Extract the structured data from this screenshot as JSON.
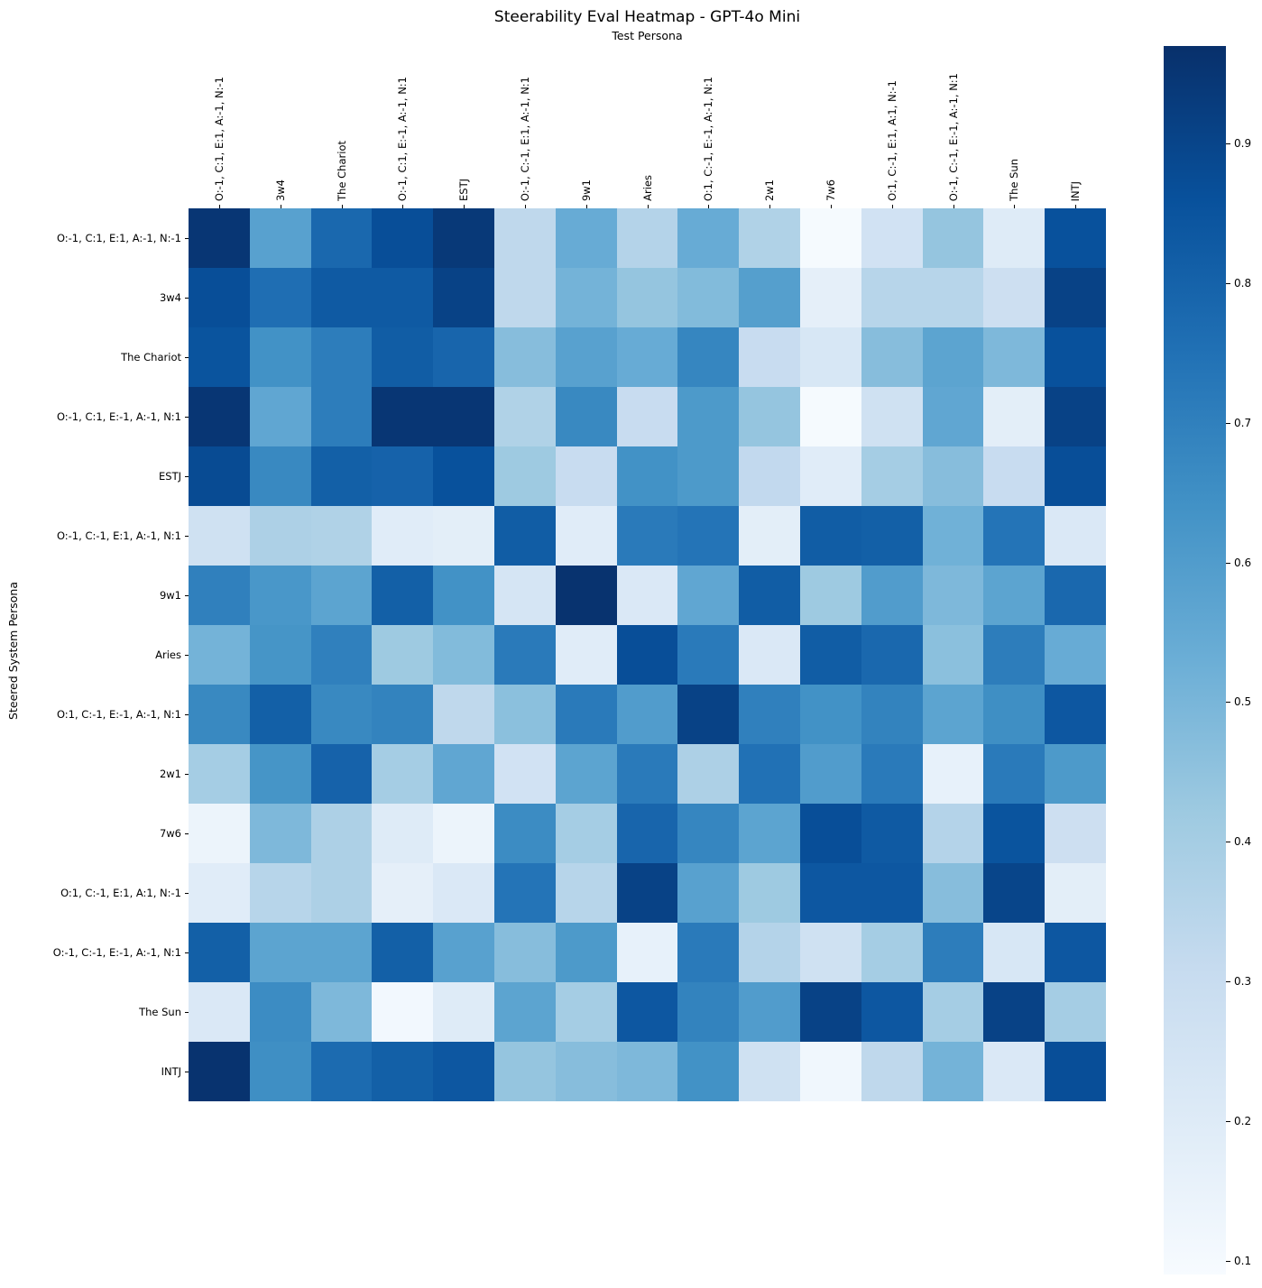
{
  "figure": {
    "title": "Steerability Eval Heatmap - GPT-4o Mini",
    "x_axis_label": "Test Persona",
    "y_axis_label": "Steered System Persona"
  },
  "chart_data": {
    "type": "heatmap",
    "colormap": "Blues",
    "legend_position": "right-colorbar",
    "grid": false,
    "x_labels": [
      "O:-1, C:1, E:1, A:-1, N:-1",
      "3w4",
      "The Chariot",
      "O:-1, C:1, E:-1, A:-1, N:1",
      "ESTJ",
      "O:-1, C:-1, E:1, A:-1, N:1",
      "9w1",
      "Aries",
      "O:1, C:-1, E:-1, A:-1, N:1",
      "2w1",
      "7w6",
      "O:1, C:-1, E:1, A:1, N:-1",
      "O:-1, C:-1, E:-1, A:-1, N:1",
      "The Sun",
      "INTJ"
    ],
    "y_labels": [
      "O:-1, C:1, E:1, A:-1, N:-1",
      "3w4",
      "The Chariot",
      "O:-1, C:1, E:-1, A:-1, N:1",
      "ESTJ",
      "O:-1, C:-1, E:1, A:-1, N:1",
      "9w1",
      "Aries",
      "O:1, C:-1, E:-1, A:-1, N:1",
      "2w1",
      "7w6",
      "O:1, C:-1, E:1, A:1, N:-1",
      "O:-1, C:-1, E:-1, A:-1, N:1",
      "The Sun",
      "INTJ"
    ],
    "values": [
      [
        0.95,
        0.58,
        0.78,
        0.87,
        0.94,
        0.33,
        0.54,
        0.36,
        0.54,
        0.37,
        0.1,
        0.26,
        0.44,
        0.2,
        0.86
      ],
      [
        0.87,
        0.76,
        0.83,
        0.83,
        0.91,
        0.33,
        0.51,
        0.44,
        0.48,
        0.59,
        0.17,
        0.35,
        0.35,
        0.28,
        0.91
      ],
      [
        0.85,
        0.64,
        0.71,
        0.82,
        0.79,
        0.47,
        0.58,
        0.54,
        0.68,
        0.3,
        0.23,
        0.47,
        0.57,
        0.49,
        0.86
      ],
      [
        0.95,
        0.56,
        0.71,
        0.95,
        0.95,
        0.37,
        0.67,
        0.3,
        0.61,
        0.44,
        0.1,
        0.27,
        0.56,
        0.18,
        0.91
      ],
      [
        0.88,
        0.67,
        0.81,
        0.8,
        0.86,
        0.42,
        0.3,
        0.64,
        0.61,
        0.32,
        0.19,
        0.4,
        0.47,
        0.3,
        0.87
      ],
      [
        0.27,
        0.38,
        0.37,
        0.19,
        0.18,
        0.82,
        0.19,
        0.72,
        0.74,
        0.18,
        0.82,
        0.81,
        0.52,
        0.74,
        0.22
      ],
      [
        0.7,
        0.62,
        0.57,
        0.81,
        0.64,
        0.24,
        0.96,
        0.22,
        0.56,
        0.82,
        0.42,
        0.6,
        0.49,
        0.57,
        0.78
      ],
      [
        0.51,
        0.63,
        0.7,
        0.42,
        0.48,
        0.72,
        0.19,
        0.87,
        0.72,
        0.22,
        0.82,
        0.78,
        0.46,
        0.71,
        0.54
      ],
      [
        0.67,
        0.81,
        0.67,
        0.69,
        0.33,
        0.46,
        0.72,
        0.6,
        0.91,
        0.7,
        0.64,
        0.69,
        0.57,
        0.65,
        0.84
      ],
      [
        0.4,
        0.63,
        0.8,
        0.4,
        0.56,
        0.26,
        0.57,
        0.72,
        0.38,
        0.75,
        0.6,
        0.72,
        0.16,
        0.72,
        0.61
      ],
      [
        0.14,
        0.49,
        0.38,
        0.2,
        0.14,
        0.66,
        0.4,
        0.79,
        0.68,
        0.57,
        0.87,
        0.83,
        0.36,
        0.85,
        0.28
      ],
      [
        0.19,
        0.35,
        0.38,
        0.17,
        0.22,
        0.74,
        0.35,
        0.91,
        0.58,
        0.42,
        0.84,
        0.84,
        0.47,
        0.9,
        0.18
      ],
      [
        0.81,
        0.57,
        0.57,
        0.81,
        0.58,
        0.47,
        0.61,
        0.16,
        0.72,
        0.36,
        0.27,
        0.4,
        0.71,
        0.23,
        0.84
      ],
      [
        0.22,
        0.66,
        0.49,
        0.11,
        0.2,
        0.57,
        0.4,
        0.84,
        0.69,
        0.6,
        0.91,
        0.84,
        0.4,
        0.91,
        0.4
      ],
      [
        0.96,
        0.65,
        0.77,
        0.81,
        0.84,
        0.44,
        0.47,
        0.49,
        0.64,
        0.27,
        0.12,
        0.33,
        0.51,
        0.22,
        0.87
      ]
    ],
    "colorbar": {
      "vmin": 0.09,
      "vmax": 0.97,
      "ticks": [
        0.9,
        0.8,
        0.7,
        0.6,
        0.5,
        0.4,
        0.3,
        0.2,
        0.1
      ]
    }
  }
}
